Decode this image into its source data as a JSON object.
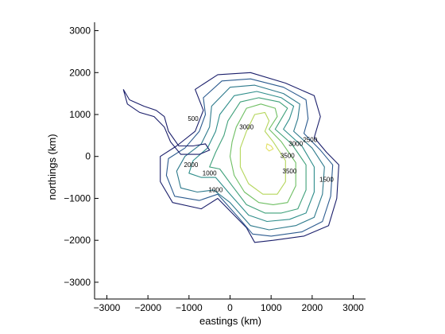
{
  "chart_data": {
    "type": "contour",
    "title": "",
    "xlabel": "eastings (km)",
    "ylabel": "northings (km)",
    "xlim": [
      -3300,
      3300
    ],
    "ylim": [
      -3400,
      3200
    ],
    "xticks": [
      -3000,
      -2000,
      -1000,
      0,
      1000,
      2000,
      3000
    ],
    "yticks": [
      -3000,
      -2000,
      -1000,
      0,
      1000,
      2000,
      3000
    ],
    "grid": false,
    "colormap": [
      "#1b1f6b",
      "#2c5b8f",
      "#2e8d8a",
      "#4fb070",
      "#9ccf5a",
      "#e2e063"
    ],
    "levels": [
      0,
      500,
      1000,
      1500,
      2000,
      2500,
      3000,
      3500
    ],
    "contours": [
      {
        "level": 0,
        "color": "#1b1f6b",
        "points": [
          [
            -850,
            1600
          ],
          [
            -300,
            1950
          ],
          [
            500,
            2000
          ],
          [
            1350,
            1750
          ],
          [
            2050,
            1450
          ],
          [
            2200,
            950
          ],
          [
            2050,
            450
          ],
          [
            2350,
            100
          ],
          [
            2650,
            -200
          ],
          [
            2600,
            -1000
          ],
          [
            2400,
            -1650
          ],
          [
            1800,
            -1900
          ],
          [
            1050,
            -2000
          ],
          [
            600,
            -2050
          ],
          [
            400,
            -1700
          ],
          [
            -300,
            -1000
          ],
          [
            -700,
            -1250
          ],
          [
            -1400,
            -1100
          ],
          [
            -1700,
            -600
          ],
          [
            -1700,
            0
          ],
          [
            -1300,
            250
          ],
          [
            -850,
            600
          ],
          [
            -650,
            1100
          ]
        ]
      },
      {
        "level": 500,
        "color": "#2c5b8f",
        "points": [
          [
            -650,
            1400
          ],
          [
            -200,
            1800
          ],
          [
            500,
            1850
          ],
          [
            1300,
            1650
          ],
          [
            1850,
            1350
          ],
          [
            1900,
            900
          ],
          [
            1800,
            550
          ],
          [
            2200,
            150
          ],
          [
            2500,
            -200
          ],
          [
            2450,
            -950
          ],
          [
            2250,
            -1550
          ],
          [
            1750,
            -1800
          ],
          [
            1000,
            -1900
          ],
          [
            550,
            -1850
          ],
          [
            200,
            -1450
          ],
          [
            -300,
            -900
          ],
          [
            -750,
            -1050
          ],
          [
            -1350,
            -950
          ],
          [
            -1550,
            -450
          ],
          [
            -1500,
            -50
          ],
          [
            -1100,
            200
          ],
          [
            -750,
            600
          ],
          [
            -600,
            1000
          ]
        ]
      },
      {
        "level": 1000,
        "color": "#2e7a8c",
        "points": [
          [
            -450,
            1200
          ],
          [
            0,
            1650
          ],
          [
            600,
            1700
          ],
          [
            1300,
            1500
          ],
          [
            1700,
            1250
          ],
          [
            1650,
            900
          ],
          [
            1550,
            600
          ],
          [
            2000,
            200
          ],
          [
            2300,
            -250
          ],
          [
            2250,
            -900
          ],
          [
            2050,
            -1450
          ],
          [
            1600,
            -1650
          ],
          [
            950,
            -1750
          ],
          [
            500,
            -1650
          ],
          [
            0,
            -1100
          ],
          [
            -400,
            -800
          ],
          [
            -800,
            -850
          ],
          [
            -1200,
            -750
          ],
          [
            -1300,
            -350
          ],
          [
            -1100,
            0
          ],
          [
            -700,
            300
          ],
          [
            -500,
            700
          ]
        ]
      },
      {
        "level": 1500,
        "color": "#2e8d8a",
        "points": [
          [
            -250,
            1000
          ],
          [
            100,
            1450
          ],
          [
            650,
            1550
          ],
          [
            1250,
            1400
          ],
          [
            1550,
            1200
          ],
          [
            1450,
            900
          ],
          [
            1300,
            650
          ],
          [
            1750,
            250
          ],
          [
            2050,
            -250
          ],
          [
            2050,
            -850
          ],
          [
            1850,
            -1350
          ],
          [
            1450,
            -1500
          ],
          [
            900,
            -1550
          ],
          [
            450,
            -1400
          ],
          [
            0,
            -900
          ],
          [
            -350,
            -500
          ],
          [
            -700,
            -500
          ],
          [
            -1000,
            -400
          ],
          [
            -900,
            -100
          ],
          [
            -550,
            200
          ],
          [
            -350,
            600
          ]
        ]
      },
      {
        "level": 2000,
        "color": "#3fa07a",
        "points": [
          [
            -50,
            850
          ],
          [
            250,
            1300
          ],
          [
            700,
            1400
          ],
          [
            1200,
            1300
          ],
          [
            1400,
            1150
          ],
          [
            1250,
            900
          ],
          [
            1100,
            650
          ],
          [
            1500,
            300
          ],
          [
            1850,
            -200
          ],
          [
            1850,
            -800
          ],
          [
            1650,
            -1250
          ],
          [
            1250,
            -1350
          ],
          [
            850,
            -1350
          ],
          [
            400,
            -1150
          ],
          [
            50,
            -700
          ],
          [
            -250,
            -300
          ],
          [
            -500,
            -250
          ],
          [
            -350,
            100
          ],
          [
            -150,
            500
          ]
        ]
      },
      {
        "level": 2500,
        "color": "#6fbf63",
        "points": [
          [
            150,
            700
          ],
          [
            400,
            1150
          ],
          [
            750,
            1250
          ],
          [
            1100,
            1150
          ],
          [
            1150,
            950
          ],
          [
            950,
            650
          ],
          [
            1250,
            350
          ],
          [
            1600,
            -150
          ],
          [
            1600,
            -700
          ],
          [
            1400,
            -1100
          ],
          [
            1050,
            -1150
          ],
          [
            700,
            -1100
          ],
          [
            350,
            -850
          ],
          [
            100,
            -450
          ],
          [
            0,
            0
          ],
          [
            50,
            350
          ]
        ]
      },
      {
        "level": 3000,
        "color": "#b5d65b",
        "points": [
          [
            400,
            600
          ],
          [
            600,
            1000
          ],
          [
            850,
            1050
          ],
          [
            950,
            850
          ],
          [
            850,
            600
          ],
          [
            1050,
            350
          ],
          [
            1350,
            -100
          ],
          [
            1350,
            -600
          ],
          [
            1150,
            -900
          ],
          [
            800,
            -900
          ],
          [
            450,
            -650
          ],
          [
            250,
            -250
          ],
          [
            250,
            200
          ]
        ]
      },
      {
        "level": 3500,
        "color": "#e2e063",
        "points": [
          [
            900,
            300
          ],
          [
            1000,
            250
          ],
          [
            1050,
            180
          ],
          [
            950,
            130
          ],
          [
            880,
            200
          ]
        ]
      }
    ],
    "peninsula": [
      [
        -2600,
        1600
      ],
      [
        -2450,
        1350
      ],
      [
        -2100,
        1200
      ],
      [
        -1800,
        1100
      ],
      [
        -1600,
        950
      ],
      [
        -1500,
        600
      ],
      [
        -1250,
        250
      ],
      [
        -900,
        250
      ],
      [
        -600,
        300
      ],
      [
        -500,
        150
      ],
      [
        -750,
        50
      ],
      [
        -1200,
        50
      ],
      [
        -1450,
        350
      ],
      [
        -1600,
        700
      ],
      [
        -1850,
        950
      ],
      [
        -2200,
        1050
      ],
      [
        -2500,
        1250
      ]
    ],
    "contour_labels": [
      {
        "text": "2000",
        "x": -950,
        "y": -250
      },
      {
        "text": "1000",
        "x": -500,
        "y": -450
      },
      {
        "text": "500",
        "x": -900,
        "y": 850
      },
      {
        "text": "3000",
        "x": 400,
        "y": 650
      },
      {
        "text": "3000",
        "x": 1600,
        "y": 250
      },
      {
        "text": "3500",
        "x": 1400,
        "y": -30
      },
      {
        "text": "3500",
        "x": 1450,
        "y": -400
      },
      {
        "text": "2500",
        "x": 1950,
        "y": 350
      },
      {
        "text": "1500",
        "x": 2350,
        "y": -600
      },
      {
        "text": "1000",
        "x": -350,
        "y": -850
      }
    ]
  }
}
